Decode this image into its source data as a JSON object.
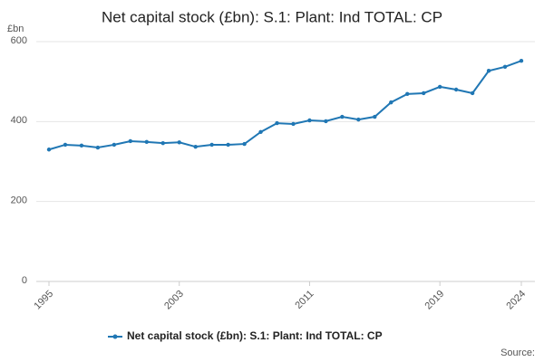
{
  "chart_data": {
    "type": "line",
    "title": "Net capital stock (£bn): S.1: Plant: Ind TOTAL: CP",
    "y_axis_label": "£bn",
    "source": "Source:",
    "x": [
      1995,
      1996,
      1997,
      1998,
      1999,
      2000,
      2001,
      2002,
      2003,
      2004,
      2005,
      2006,
      2007,
      2008,
      2009,
      2010,
      2011,
      2012,
      2013,
      2014,
      2015,
      2016,
      2017,
      2018,
      2019,
      2020,
      2021,
      2022,
      2023,
      2024
    ],
    "series": [
      {
        "name": "Net capital stock (£bn): S.1: Plant: Ind TOTAL: CP",
        "color": "#2077b4",
        "values": [
          330,
          342,
          340,
          335,
          342,
          351,
          349,
          346,
          348,
          337,
          342,
          342,
          344,
          374,
          396,
          394,
          403,
          401,
          412,
          405,
          412,
          448,
          469,
          471,
          487,
          480,
          471,
          527,
          537,
          552
        ]
      }
    ],
    "xlim": [
      1995,
      2024
    ],
    "xticks": [
      1995,
      2003,
      2011,
      2019,
      2024
    ],
    "ylim": [
      0,
      600
    ],
    "yticks": [
      0,
      200,
      400,
      600
    ],
    "grid": true
  }
}
